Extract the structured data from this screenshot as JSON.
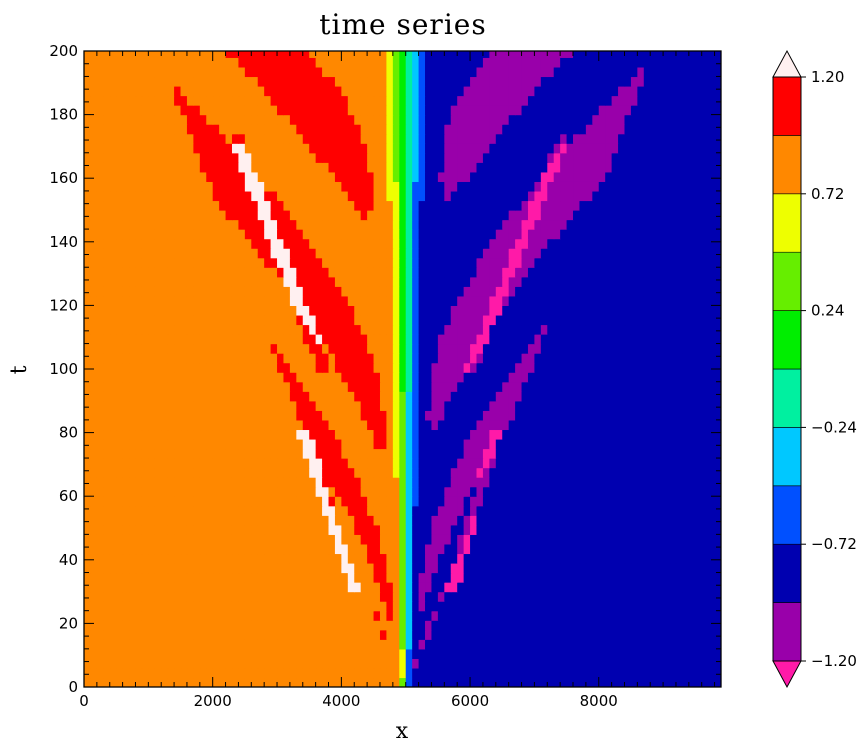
{
  "chart_data": {
    "type": "heatmap",
    "title": "time series",
    "xlabel": "x",
    "ylabel": "t",
    "xlim": [
      0,
      9900
    ],
    "ylim": [
      0,
      200
    ],
    "x_ticks": [
      0,
      2000,
      4000,
      6000,
      8000
    ],
    "x_tick_labels": [
      "0",
      "2000",
      "4000",
      "6000",
      "8000"
    ],
    "y_ticks": [
      0,
      20,
      40,
      60,
      80,
      100,
      120,
      140,
      160,
      180,
      200
    ],
    "y_tick_labels": [
      "0",
      "20",
      "40",
      "60",
      "80",
      "100",
      "120",
      "140",
      "160",
      "180",
      "200"
    ],
    "colorbar": {
      "levels": [
        -1.2,
        -0.96,
        -0.72,
        -0.48,
        -0.24,
        0.0,
        0.24,
        0.48,
        0.72,
        0.96,
        1.2
      ],
      "tick_values": [
        -1.2,
        -0.72,
        -0.24,
        0.24,
        0.72,
        1.2
      ],
      "tick_labels": [
        "−1.20",
        "−0.72",
        "−0.24",
        "0.24",
        "0.72",
        "1.20"
      ],
      "colors": [
        "#9900aa",
        "#0000b0",
        "#0050ff",
        "#00c8ff",
        "#00f0a0",
        "#00ee00",
        "#66ee00",
        "#eeff00",
        "#ff8800",
        "#ff0000"
      ],
      "under_color": "#ff1aa8",
      "over_color": "#fff0f0"
    },
    "field": {
      "description_of_pattern": "shock-like profile centered at x=5000; left side ~ +1 values with oscillating bands, right side ~ -1",
      "center_x": 5000
    }
  }
}
